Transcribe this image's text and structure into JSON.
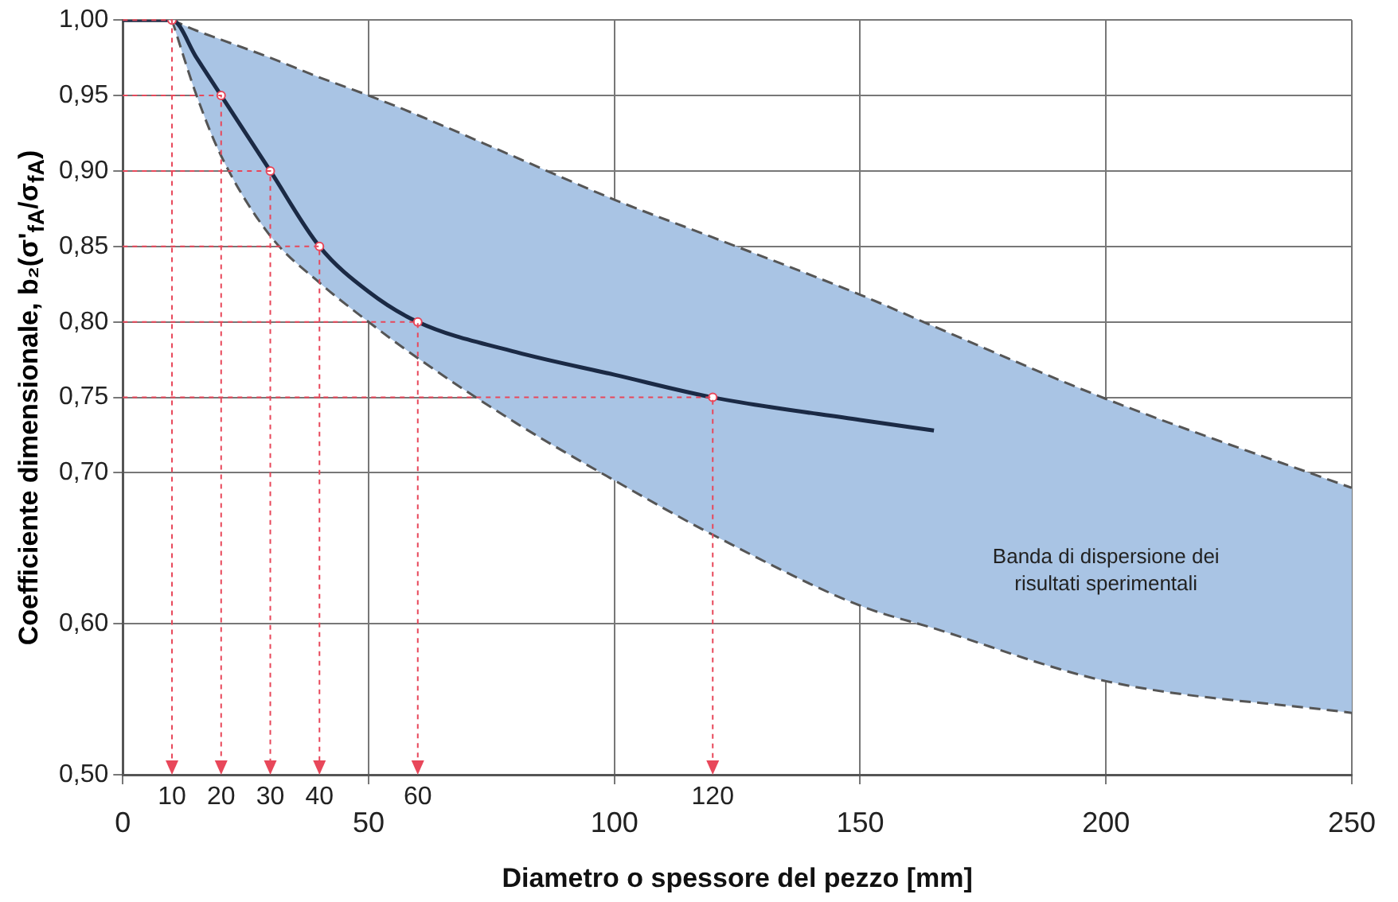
{
  "chart_data": {
    "type": "line",
    "xlabel": "Diametro o spessore del pezzo [mm]",
    "ylabel": "Coefficiente dimensionale, b₂(σ'$_{fA}$/σ$_{fA}$)",
    "xlim": [
      0,
      250
    ],
    "xticks": [
      0,
      50,
      100,
      150,
      200,
      250
    ],
    "ylim": [
      0.5,
      1.0
    ],
    "yticks": [
      {
        "value": 0.5,
        "label": "0,50"
      },
      {
        "value": 0.6,
        "label": "0,60"
      },
      {
        "value": 0.7,
        "label": "0,70"
      },
      {
        "value": 0.75,
        "label": "0,75"
      },
      {
        "value": 0.8,
        "label": "0,80"
      },
      {
        "value": 0.85,
        "label": "0,85"
      },
      {
        "value": 0.9,
        "label": "0,90"
      },
      {
        "value": 0.95,
        "label": "0,95"
      },
      {
        "value": 1.0,
        "label": "1,00"
      }
    ],
    "grid": true,
    "legend": false,
    "series": [
      {
        "line_style": "solid",
        "color": "#1b2a45",
        "x": [
          0,
          10,
          15,
          20,
          30,
          40,
          50,
          60,
          80,
          100,
          120,
          150,
          165,
          200,
          250
        ],
        "values": [
          1.0,
          1.0,
          0.975,
          0.95,
          0.9,
          0.85,
          0.82,
          0.8,
          0.78,
          0.765,
          0.75,
          0.735,
          0.728,
          null,
          null
        ],
        "lower": [
          null,
          1.0,
          0.95,
          0.91,
          0.857,
          0.826,
          0.8,
          0.776,
          0.733,
          0.695,
          0.659,
          0.612,
          0.597,
          0.562,
          0.541
        ],
        "upper": [
          null,
          1.0,
          0.993,
          0.987,
          0.975,
          0.962,
          0.95,
          0.937,
          0.909,
          0.881,
          0.856,
          0.818,
          0.797,
          0.749,
          0.69
        ]
      },
      {
        "type": "line",
        "line_style": "dashed",
        "color": "#555555",
        "x": [
          10,
          15,
          20,
          30,
          40,
          50,
          60,
          80,
          100,
          120,
          150,
          165,
          200,
          250
        ],
        "values": [
          1.0,
          0.993,
          0.987,
          0.975,
          0.962,
          0.95,
          0.937,
          0.909,
          0.881,
          0.856,
          0.818,
          0.797,
          0.749,
          0.69
        ]
      },
      {
        "type": "line",
        "line_style": "dashed",
        "color": "#555555",
        "x": [
          10,
          15,
          20,
          30,
          40,
          50,
          60,
          80,
          100,
          120,
          150,
          165,
          200,
          250
        ],
        "values": [
          1.0,
          0.95,
          0.91,
          0.857,
          0.826,
          0.8,
          0.776,
          0.733,
          0.695,
          0.659,
          0.612,
          0.597,
          0.562,
          0.541
        ]
      },
      {
        "type": "scatter",
        "marker": "circle",
        "color": "#e8475a",
        "x": [
          10,
          20,
          30,
          40,
          60,
          120
        ],
        "values": [
          1.0,
          0.95,
          0.9,
          0.85,
          0.8,
          0.75
        ]
      }
    ],
    "annotations": [
      "10",
      "20",
      "30",
      "40",
      "60",
      "120",
      "Banda di dispersione dei\nrisultati sperimentali"
    ]
  }
}
